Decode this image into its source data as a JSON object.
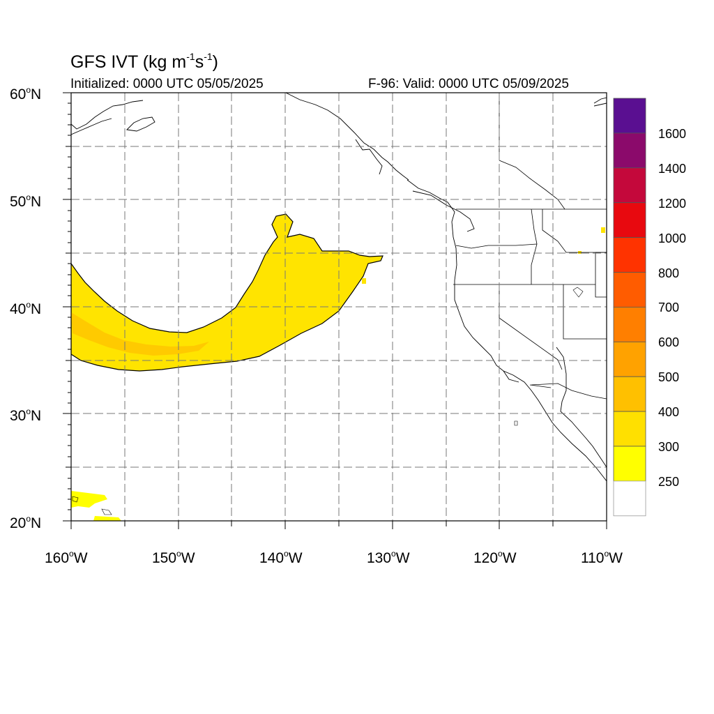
{
  "title": {
    "main": "GFS IVT (kg m",
    "exp1": "-1",
    "mid": "s",
    "exp2": "-1",
    "close": ")"
  },
  "initialized": "Initialized: 0000 UTC 05/05/2025",
  "valid": "F-96: Valid: 0000 UTC 05/09/2025",
  "map": {
    "lon_range": [
      -160,
      -110
    ],
    "lat_range": [
      20,
      60
    ],
    "grid": "dashed every 5 degrees",
    "lat_labels": [
      {
        "value": 60,
        "num": "60",
        "hemi": "N"
      },
      {
        "value": 50,
        "num": "50",
        "hemi": "N"
      },
      {
        "value": 40,
        "num": "40",
        "hemi": "N"
      },
      {
        "value": 30,
        "num": "30",
        "hemi": "N"
      },
      {
        "value": 20,
        "num": "20",
        "hemi": "N"
      }
    ],
    "lon_labels": [
      {
        "value": -160,
        "num": "160",
        "hemi": "W"
      },
      {
        "value": -150,
        "num": "150",
        "hemi": "W"
      },
      {
        "value": -140,
        "num": "140",
        "hemi": "W"
      },
      {
        "value": -130,
        "num": "130",
        "hemi": "W"
      },
      {
        "value": -120,
        "num": "120",
        "hemi": "W"
      },
      {
        "value": -110,
        "num": "110",
        "hemi": "W"
      }
    ],
    "degree_symbol": "o"
  },
  "colorbar": {
    "labels": [
      "1600",
      "1400",
      "1200",
      "1000",
      "800",
      "700",
      "600",
      "500",
      "400",
      "300",
      "250"
    ],
    "colors_top_to_bottom": [
      "#5a0f91",
      "#8b0a6b",
      "#c4083b",
      "#e8090f",
      "#ff3300",
      "#ff5c00",
      "#ff7f00",
      "#ffa200",
      "#ffc000",
      "#ffe000",
      "#ffff00",
      "#ffffff"
    ]
  },
  "colors": {
    "ar_main": "#ffe400",
    "ar_core": "#ffc500",
    "ar_edge": "#ffff00"
  }
}
